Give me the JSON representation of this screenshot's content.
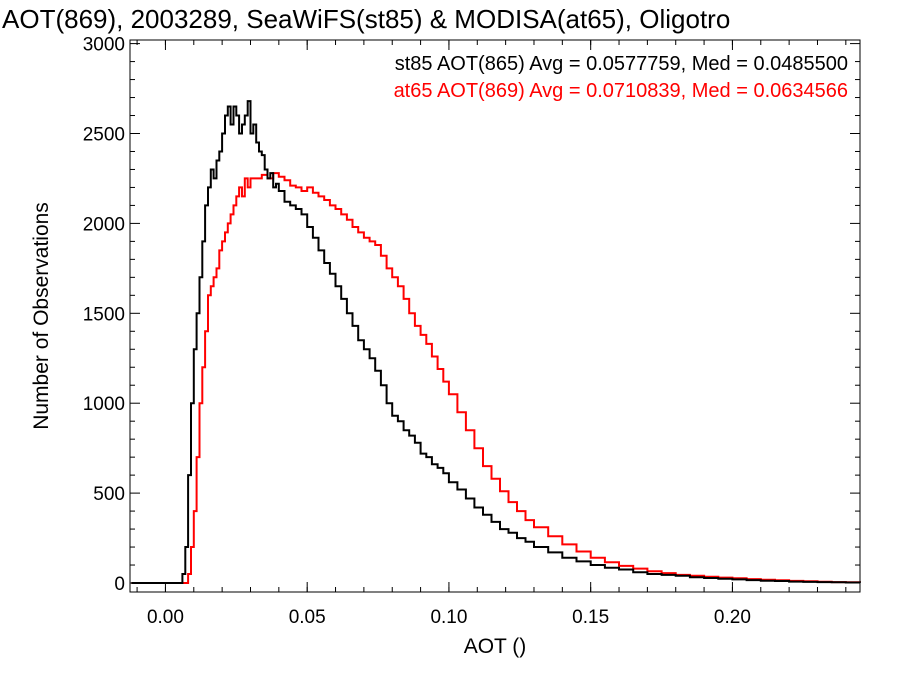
{
  "chart_data": {
    "type": "line",
    "title": "AOT(869), 2003289, SeaWiFS(st85) & MODISA(at65), Oligotro",
    "xlabel": "AOT ()",
    "ylabel": "Number of Observations",
    "xlim": [
      -0.0125,
      0.245
    ],
    "ylim": [
      -50,
      3020
    ],
    "x_ticks": [
      0.0,
      0.05,
      0.1,
      0.15,
      0.2
    ],
    "x_tick_labels": [
      "0.00",
      "0.05",
      "0.10",
      "0.15",
      "0.20"
    ],
    "y_ticks": [
      0,
      500,
      1000,
      1500,
      2000,
      2500,
      3000
    ],
    "y_tick_labels": [
      "0",
      "500",
      "1000",
      "1500",
      "2000",
      "2500",
      "3000"
    ],
    "grid": false,
    "legend_position": "top-right",
    "annotations": [
      {
        "text": "st85 AOT(865) Avg = 0.0577759, Med = 0.0485500",
        "color": "#000000"
      },
      {
        "text": "at65 AOT(869) Avg = 0.0710839, Med = 0.0634566",
        "color": "#ff0000"
      }
    ],
    "series": [
      {
        "color": "#000000",
        "x": [
          -0.012,
          -0.005,
          0.0,
          0.005,
          0.006,
          0.007,
          0.008,
          0.009,
          0.01,
          0.011,
          0.012,
          0.013,
          0.014,
          0.015,
          0.016,
          0.017,
          0.018,
          0.019,
          0.02,
          0.021,
          0.022,
          0.023,
          0.024,
          0.025,
          0.026,
          0.027,
          0.028,
          0.029,
          0.03,
          0.031,
          0.032,
          0.033,
          0.034,
          0.035,
          0.036,
          0.037,
          0.038,
          0.039,
          0.04,
          0.042,
          0.044,
          0.046,
          0.048,
          0.05,
          0.052,
          0.054,
          0.056,
          0.058,
          0.06,
          0.062,
          0.064,
          0.066,
          0.068,
          0.07,
          0.072,
          0.074,
          0.076,
          0.078,
          0.08,
          0.082,
          0.084,
          0.086,
          0.088,
          0.09,
          0.092,
          0.094,
          0.096,
          0.098,
          0.1,
          0.103,
          0.106,
          0.109,
          0.112,
          0.115,
          0.118,
          0.121,
          0.124,
          0.127,
          0.13,
          0.135,
          0.14,
          0.145,
          0.15,
          0.155,
          0.16,
          0.165,
          0.17,
          0.175,
          0.18,
          0.185,
          0.19,
          0.195,
          0.2,
          0.205,
          0.21,
          0.215,
          0.22,
          0.225,
          0.23,
          0.235,
          0.24,
          0.245
        ],
        "values": [
          0,
          0,
          0,
          0,
          50,
          200,
          600,
          1000,
          1300,
          1500,
          1700,
          1900,
          2100,
          2200,
          2300,
          2250,
          2350,
          2400,
          2500,
          2600,
          2650,
          2550,
          2650,
          2600,
          2500,
          2550,
          2600,
          2680,
          2500,
          2550,
          2450,
          2400,
          2380,
          2300,
          2250,
          2280,
          2200,
          2220,
          2180,
          2120,
          2100,
          2080,
          2050,
          1980,
          1920,
          1850,
          1780,
          1720,
          1650,
          1580,
          1500,
          1430,
          1350,
          1300,
          1250,
          1180,
          1100,
          1000,
          930,
          900,
          850,
          820,
          780,
          720,
          700,
          660,
          640,
          610,
          560,
          520,
          470,
          420,
          380,
          340,
          300,
          280,
          250,
          230,
          200,
          170,
          140,
          120,
          100,
          85,
          75,
          60,
          50,
          45,
          40,
          32,
          28,
          24,
          20,
          16,
          13,
          11,
          8,
          6,
          5,
          4,
          3,
          2
        ]
      },
      {
        "color": "#ff0000",
        "x": [
          -0.012,
          -0.005,
          0.0,
          0.005,
          0.008,
          0.009,
          0.01,
          0.011,
          0.012,
          0.013,
          0.014,
          0.015,
          0.016,
          0.017,
          0.018,
          0.019,
          0.02,
          0.021,
          0.022,
          0.023,
          0.024,
          0.025,
          0.026,
          0.027,
          0.028,
          0.029,
          0.03,
          0.032,
          0.034,
          0.036,
          0.038,
          0.04,
          0.042,
          0.044,
          0.046,
          0.048,
          0.05,
          0.052,
          0.054,
          0.056,
          0.058,
          0.06,
          0.062,
          0.064,
          0.066,
          0.068,
          0.07,
          0.072,
          0.074,
          0.076,
          0.078,
          0.08,
          0.082,
          0.084,
          0.086,
          0.088,
          0.09,
          0.092,
          0.094,
          0.096,
          0.098,
          0.1,
          0.103,
          0.106,
          0.109,
          0.112,
          0.115,
          0.118,
          0.121,
          0.124,
          0.127,
          0.13,
          0.135,
          0.14,
          0.145,
          0.15,
          0.155,
          0.16,
          0.165,
          0.17,
          0.175,
          0.18,
          0.185,
          0.19,
          0.195,
          0.2,
          0.205,
          0.21,
          0.215,
          0.22,
          0.225,
          0.23,
          0.235,
          0.24,
          0.245
        ],
        "values": [
          0,
          0,
          0,
          0,
          50,
          200,
          400,
          700,
          1000,
          1200,
          1400,
          1600,
          1650,
          1700,
          1750,
          1850,
          1900,
          1950,
          2000,
          2050,
          2100,
          2150,
          2200,
          2150,
          2250,
          2200,
          2250,
          2250,
          2270,
          2250,
          2280,
          2260,
          2240,
          2210,
          2200,
          2180,
          2200,
          2170,
          2150,
          2130,
          2100,
          2080,
          2050,
          2020,
          1980,
          1950,
          1920,
          1900,
          1880,
          1820,
          1750,
          1700,
          1650,
          1580,
          1500,
          1430,
          1380,
          1330,
          1260,
          1190,
          1120,
          1050,
          950,
          850,
          750,
          650,
          580,
          510,
          450,
          400,
          350,
          310,
          260,
          215,
          175,
          140,
          115,
          95,
          80,
          65,
          55,
          45,
          40,
          35,
          30,
          26,
          22,
          18,
          15,
          12,
          10,
          7,
          5,
          4,
          3
        ]
      }
    ]
  }
}
